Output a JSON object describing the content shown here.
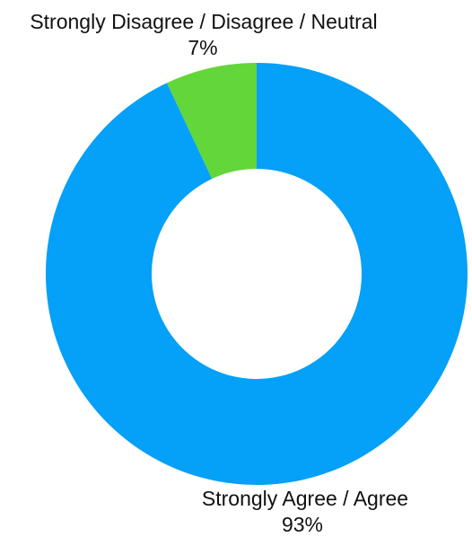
{
  "chart_data": {
    "type": "pie",
    "title": "",
    "donut": true,
    "slices": [
      {
        "label": "Strongly Disagree / Disagree / Neutral",
        "value": 7,
        "value_label": "7%",
        "color": "#63d63a"
      },
      {
        "label": "Strongly Agree / Agree",
        "value": 93,
        "value_label": "93%",
        "color": "#05a0f7"
      }
    ]
  }
}
